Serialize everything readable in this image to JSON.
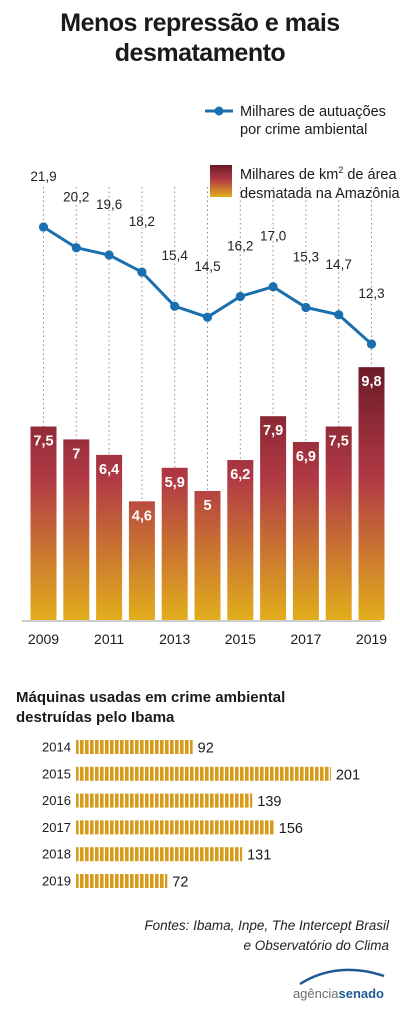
{
  "title_line1": "Menos repressão e mais",
  "title_line2": "desmatamento",
  "legend": {
    "line_label_1": "Milhares de autuações",
    "line_label_2": "por crime ambiental",
    "bar_label_1a": "Milhares de km",
    "bar_label_1_sup": "2",
    "bar_label_1b": " de área",
    "bar_label_2": "desmatada na Amazônia"
  },
  "colors": {
    "line": "#1a6fae",
    "bar_top": "#6b1a28",
    "bar_mid": "#b13a45",
    "bar_bottom": "#e2ae1c",
    "hbar": "#d69b1b",
    "guide": "#8c8c8c"
  },
  "chart_data": [
    {
      "type": "bar+line",
      "categories": [
        "2009",
        "2010",
        "2011",
        "2012",
        "2013",
        "2014",
        "2015",
        "2016",
        "2017",
        "2018",
        "2019"
      ],
      "x_tick_labels": [
        "2009",
        "2011",
        "2013",
        "2015",
        "2017",
        "2019"
      ],
      "series": [
        {
          "name": "Milhares de autuações por crime ambiental",
          "kind": "line",
          "values": [
            21.9,
            20.2,
            19.6,
            18.2,
            15.4,
            14.5,
            16.2,
            17.0,
            15.3,
            14.7,
            12.3
          ],
          "labels": [
            "21,9",
            "20,2",
            "19,6",
            "18,2",
            "15,4",
            "14,5",
            "16,2",
            "17,0",
            "15,3",
            "14,7",
            "12,3"
          ]
        },
        {
          "name": "Milhares de km² de área desmatada na Amazônia",
          "kind": "bar",
          "values": [
            7.5,
            7,
            6.4,
            4.6,
            5.9,
            5,
            6.2,
            7.9,
            6.9,
            7.5,
            9.8
          ],
          "labels": [
            "7,5",
            "7",
            "6,4",
            "4,6",
            "5,9",
            "5",
            "6,2",
            "7,9",
            "6,9",
            "7,5",
            "9,8"
          ]
        }
      ]
    },
    {
      "type": "bar",
      "orientation": "horizontal",
      "title_line1": "Máquinas usadas em crime ambiental",
      "title_line2": "destruídas pelo Ibama",
      "categories": [
        "2014",
        "2015",
        "2016",
        "2017",
        "2018",
        "2019"
      ],
      "values": [
        92,
        201,
        139,
        156,
        131,
        72
      ]
    }
  ],
  "source_line1": "Fontes: Ibama, Inpe, The Intercept Brasil",
  "source_line2": "e Observatório do Clima",
  "logo_part1": "agência",
  "logo_part2": "senado"
}
